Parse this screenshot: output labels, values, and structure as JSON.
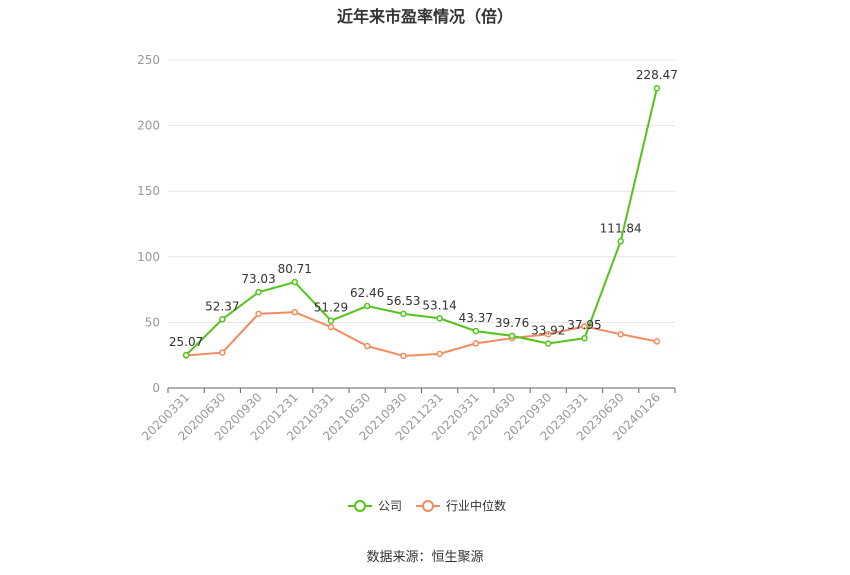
{
  "chart_data": {
    "type": "line",
    "title": "近年来市盈率情况（倍）",
    "source": "数据来源：恒生聚源",
    "categories": [
      "20200331",
      "20200630",
      "20200930",
      "20201231",
      "20210331",
      "20210630",
      "20210930",
      "20211231",
      "20220331",
      "20220630",
      "20220930",
      "20230331",
      "20230630",
      "20240126"
    ],
    "ylim": [
      0,
      250
    ],
    "yticks": [
      0,
      50,
      100,
      150,
      200,
      250
    ],
    "grid": true,
    "legend_position": "bottom",
    "series": [
      {
        "name": "公司",
        "color": "#52c41a",
        "values": [
          25.07,
          52.37,
          73.03,
          80.71,
          51.29,
          62.46,
          56.53,
          53.14,
          43.37,
          39.76,
          33.92,
          37.95,
          111.84,
          228.47
        ],
        "labels": [
          "25.07",
          "52.37",
          "73.03",
          "80.71",
          "51.29",
          "62.46",
          "56.53",
          "53.14",
          "43.37",
          "39.76",
          "33.92",
          "37.95",
          "111.84",
          "228.47"
        ]
      },
      {
        "name": "行业中位数",
        "color": "#f28c5e",
        "values": [
          24.8,
          27.0,
          56.5,
          57.8,
          46.5,
          32.0,
          24.5,
          26.0,
          34.0,
          38.0,
          41.0,
          47.0,
          41.0,
          35.5
        ]
      }
    ]
  }
}
